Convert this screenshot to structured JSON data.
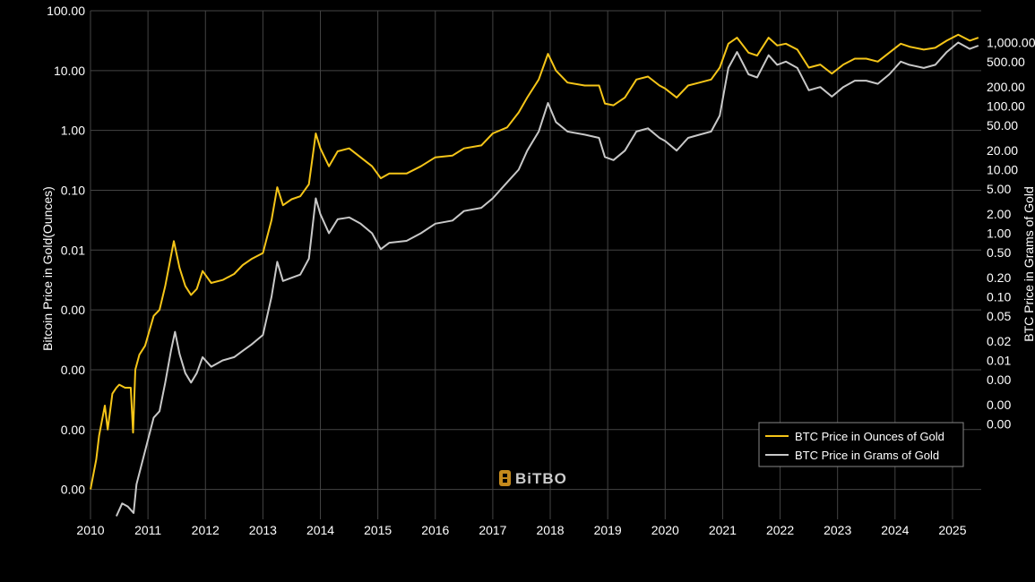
{
  "chart_data": {
    "type": "line",
    "title": "",
    "brand": "BiTBO",
    "xlabel": "",
    "ylabel": "Bitcoin Price in Gold(Ounces)",
    "ylabel_right": "BTC Price in Grams of Gold",
    "x_ticks": [
      "2010",
      "2011",
      "2012",
      "2013",
      "2014",
      "2015",
      "2016",
      "2017",
      "2018",
      "2019",
      "2020",
      "2021",
      "2022",
      "2023",
      "2024",
      "2025"
    ],
    "xlim": [
      2010.0,
      2025.5
    ],
    "ylim_left_log10": [
      -6.5,
      2
    ],
    "ylim_right_log10": [
      -4.5,
      3.5
    ],
    "y_ticks_left": [
      {
        "log": 2,
        "label": "100.00"
      },
      {
        "log": 1,
        "label": "10.00"
      },
      {
        "log": 0,
        "label": "1.00"
      },
      {
        "log": -1,
        "label": "0.10"
      },
      {
        "log": -2,
        "label": "0.01"
      },
      {
        "log": -3,
        "label": "0.00"
      },
      {
        "log": -4,
        "label": "0.00"
      },
      {
        "log": -5,
        "label": "0.00"
      },
      {
        "log": -6,
        "label": "0.00"
      }
    ],
    "y_ticks_right": [
      {
        "value": 1000,
        "label": "1,000.00"
      },
      {
        "value": 500,
        "label": "500.00"
      },
      {
        "value": 200,
        "label": "200.00"
      },
      {
        "value": 100,
        "label": "100.00"
      },
      {
        "value": 50,
        "label": "50.00"
      },
      {
        "value": 20,
        "label": "20.00"
      },
      {
        "value": 10,
        "label": "10.00"
      },
      {
        "value": 5,
        "label": "5.00"
      },
      {
        "value": 2,
        "label": "2.00"
      },
      {
        "value": 1,
        "label": "1.00"
      },
      {
        "value": 0.5,
        "label": "0.50"
      },
      {
        "value": 0.2,
        "label": "0.20"
      },
      {
        "value": 0.1,
        "label": "0.10"
      },
      {
        "value": 0.05,
        "label": "0.05"
      },
      {
        "value": 0.02,
        "label": "0.02"
      },
      {
        "value": 0.01,
        "label": "0.01"
      },
      {
        "value": 0.005,
        "label": "0.00"
      },
      {
        "value": 0.002,
        "label": "0.00"
      },
      {
        "value": 0.001,
        "label": "0.00"
      }
    ],
    "legend": {
      "position": "bottom-right"
    },
    "series": [
      {
        "name": "BTC Price in Ounces of Gold",
        "color": "#f5c518",
        "axis": "left",
        "points": [
          [
            2010.0,
            -6.0
          ],
          [
            2010.1,
            -5.5
          ],
          [
            2010.15,
            -5.1
          ],
          [
            2010.25,
            -4.6
          ],
          [
            2010.3,
            -5.0
          ],
          [
            2010.38,
            -4.4
          ],
          [
            2010.45,
            -4.3
          ],
          [
            2010.5,
            -4.25
          ],
          [
            2010.6,
            -4.3
          ],
          [
            2010.7,
            -4.3
          ],
          [
            2010.74,
            -5.05
          ],
          [
            2010.78,
            -4.0
          ],
          [
            2010.85,
            -3.75
          ],
          [
            2010.95,
            -3.6
          ],
          [
            2011.1,
            -3.1
          ],
          [
            2011.2,
            -3.0
          ],
          [
            2011.3,
            -2.6
          ],
          [
            2011.4,
            -2.1
          ],
          [
            2011.45,
            -1.85
          ],
          [
            2011.55,
            -2.3
          ],
          [
            2011.65,
            -2.6
          ],
          [
            2011.75,
            -2.75
          ],
          [
            2011.85,
            -2.65
          ],
          [
            2011.95,
            -2.35
          ],
          [
            2012.1,
            -2.55
          ],
          [
            2012.3,
            -2.5
          ],
          [
            2012.5,
            -2.4
          ],
          [
            2012.65,
            -2.25
          ],
          [
            2012.8,
            -2.15
          ],
          [
            2013.0,
            -2.05
          ],
          [
            2013.15,
            -1.5
          ],
          [
            2013.25,
            -0.95
          ],
          [
            2013.35,
            -1.25
          ],
          [
            2013.5,
            -1.15
          ],
          [
            2013.65,
            -1.1
          ],
          [
            2013.8,
            -0.9
          ],
          [
            2013.92,
            -0.05
          ],
          [
            2014.0,
            -0.3
          ],
          [
            2014.15,
            -0.6
          ],
          [
            2014.3,
            -0.35
          ],
          [
            2014.5,
            -0.3
          ],
          [
            2014.7,
            -0.45
          ],
          [
            2014.9,
            -0.6
          ],
          [
            2015.05,
            -0.8
          ],
          [
            2015.2,
            -0.72
          ],
          [
            2015.5,
            -0.72
          ],
          [
            2015.75,
            -0.6
          ],
          [
            2016.0,
            -0.45
          ],
          [
            2016.3,
            -0.42
          ],
          [
            2016.5,
            -0.3
          ],
          [
            2016.8,
            -0.25
          ],
          [
            2017.0,
            -0.05
          ],
          [
            2017.25,
            0.05
          ],
          [
            2017.45,
            0.3
          ],
          [
            2017.6,
            0.55
          ],
          [
            2017.8,
            0.85
          ],
          [
            2017.96,
            1.28
          ],
          [
            2018.1,
            1.0
          ],
          [
            2018.3,
            0.8
          ],
          [
            2018.6,
            0.75
          ],
          [
            2018.85,
            0.75
          ],
          [
            2018.95,
            0.45
          ],
          [
            2019.1,
            0.42
          ],
          [
            2019.3,
            0.55
          ],
          [
            2019.5,
            0.85
          ],
          [
            2019.7,
            0.9
          ],
          [
            2019.9,
            0.75
          ],
          [
            2020.0,
            0.7
          ],
          [
            2020.2,
            0.55
          ],
          [
            2020.4,
            0.75
          ],
          [
            2020.6,
            0.8
          ],
          [
            2020.8,
            0.85
          ],
          [
            2020.95,
            1.05
          ],
          [
            2021.1,
            1.45
          ],
          [
            2021.25,
            1.55
          ],
          [
            2021.45,
            1.3
          ],
          [
            2021.6,
            1.25
          ],
          [
            2021.8,
            1.55
          ],
          [
            2021.95,
            1.42
          ],
          [
            2022.1,
            1.45
          ],
          [
            2022.3,
            1.35
          ],
          [
            2022.5,
            1.05
          ],
          [
            2022.7,
            1.1
          ],
          [
            2022.9,
            0.95
          ],
          [
            2023.1,
            1.1
          ],
          [
            2023.3,
            1.2
          ],
          [
            2023.5,
            1.2
          ],
          [
            2023.7,
            1.15
          ],
          [
            2023.9,
            1.3
          ],
          [
            2024.1,
            1.45
          ],
          [
            2024.25,
            1.4
          ],
          [
            2024.5,
            1.35
          ],
          [
            2024.7,
            1.38
          ],
          [
            2024.9,
            1.5
          ],
          [
            2025.1,
            1.6
          ],
          [
            2025.3,
            1.5
          ],
          [
            2025.45,
            1.55
          ]
        ]
      },
      {
        "name": "BTC Price in Grams of Gold",
        "color": "#c8c8c8",
        "axis": "right",
        "points": [
          [
            2010.45,
            -4.45
          ],
          [
            2010.55,
            -4.25
          ],
          [
            2010.65,
            -4.3
          ],
          [
            2010.75,
            -4.4
          ],
          [
            2010.8,
            -3.95
          ],
          [
            2010.9,
            -3.6
          ],
          [
            2011.0,
            -3.25
          ],
          [
            2011.1,
            -2.9
          ],
          [
            2011.2,
            -2.8
          ],
          [
            2011.3,
            -2.35
          ],
          [
            2011.4,
            -1.85
          ],
          [
            2011.47,
            -1.55
          ],
          [
            2011.55,
            -1.9
          ],
          [
            2011.65,
            -2.2
          ],
          [
            2011.75,
            -2.35
          ],
          [
            2011.85,
            -2.2
          ],
          [
            2011.95,
            -1.95
          ],
          [
            2012.1,
            -2.1
          ],
          [
            2012.3,
            -2.0
          ],
          [
            2012.5,
            -1.95
          ],
          [
            2012.65,
            -1.85
          ],
          [
            2012.8,
            -1.75
          ],
          [
            2013.0,
            -1.6
          ],
          [
            2013.15,
            -1.0
          ],
          [
            2013.25,
            -0.45
          ],
          [
            2013.35,
            -0.75
          ],
          [
            2013.5,
            -0.7
          ],
          [
            2013.65,
            -0.65
          ],
          [
            2013.8,
            -0.4
          ],
          [
            2013.92,
            0.55
          ],
          [
            2014.0,
            0.3
          ],
          [
            2014.15,
            0.0
          ],
          [
            2014.3,
            0.22
          ],
          [
            2014.5,
            0.25
          ],
          [
            2014.7,
            0.15
          ],
          [
            2014.9,
            0.0
          ],
          [
            2015.05,
            -0.25
          ],
          [
            2015.2,
            -0.15
          ],
          [
            2015.5,
            -0.12
          ],
          [
            2015.75,
            0.0
          ],
          [
            2016.0,
            0.15
          ],
          [
            2016.3,
            0.2
          ],
          [
            2016.5,
            0.35
          ],
          [
            2016.8,
            0.4
          ],
          [
            2017.0,
            0.55
          ],
          [
            2017.25,
            0.8
          ],
          [
            2017.45,
            1.0
          ],
          [
            2017.6,
            1.3
          ],
          [
            2017.8,
            1.6
          ],
          [
            2017.96,
            2.05
          ],
          [
            2018.1,
            1.75
          ],
          [
            2018.3,
            1.6
          ],
          [
            2018.6,
            1.55
          ],
          [
            2018.85,
            1.5
          ],
          [
            2018.95,
            1.2
          ],
          [
            2019.1,
            1.15
          ],
          [
            2019.3,
            1.3
          ],
          [
            2019.5,
            1.6
          ],
          [
            2019.7,
            1.65
          ],
          [
            2019.9,
            1.5
          ],
          [
            2020.0,
            1.45
          ],
          [
            2020.2,
            1.3
          ],
          [
            2020.4,
            1.5
          ],
          [
            2020.6,
            1.55
          ],
          [
            2020.8,
            1.6
          ],
          [
            2020.95,
            1.85
          ],
          [
            2021.1,
            2.6
          ],
          [
            2021.25,
            2.85
          ],
          [
            2021.45,
            2.5
          ],
          [
            2021.6,
            2.45
          ],
          [
            2021.8,
            2.8
          ],
          [
            2021.95,
            2.65
          ],
          [
            2022.1,
            2.7
          ],
          [
            2022.3,
            2.6
          ],
          [
            2022.5,
            2.25
          ],
          [
            2022.7,
            2.3
          ],
          [
            2022.9,
            2.15
          ],
          [
            2023.1,
            2.3
          ],
          [
            2023.3,
            2.4
          ],
          [
            2023.5,
            2.4
          ],
          [
            2023.7,
            2.35
          ],
          [
            2023.9,
            2.5
          ],
          [
            2024.1,
            2.7
          ],
          [
            2024.25,
            2.65
          ],
          [
            2024.5,
            2.6
          ],
          [
            2024.7,
            2.65
          ],
          [
            2024.9,
            2.85
          ],
          [
            2025.1,
            3.0
          ],
          [
            2025.3,
            2.9
          ],
          [
            2025.45,
            2.95
          ]
        ]
      }
    ]
  }
}
